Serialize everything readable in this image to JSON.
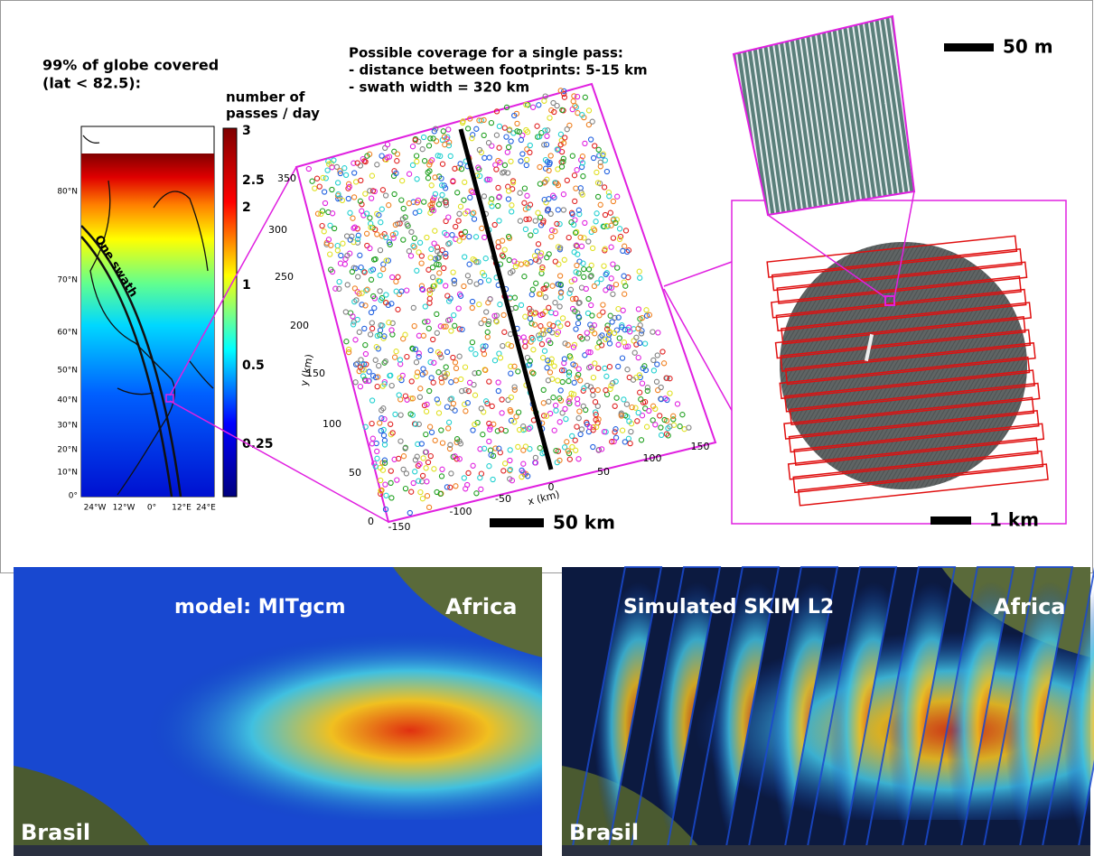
{
  "coverage_map": {
    "title_lines": [
      "99% of globe covered",
      "(lat < 82.5):"
    ],
    "lat_labels": [
      "80°N",
      "70°N",
      "60°N",
      "50°N",
      "40°N",
      "30°N",
      "20°N",
      "10°N",
      "0°"
    ],
    "lon_labels": [
      "24°W",
      "12°W",
      "0°",
      "12°E",
      "24°E"
    ],
    "swath_label": "One swath"
  },
  "colorbar": {
    "title_lines": [
      "number of",
      "passes / day"
    ],
    "tick_labels": [
      "3",
      "2.5",
      "2",
      "1",
      "0.5",
      "0.25"
    ]
  },
  "single_pass": {
    "title_lines": [
      "Possible coverage for a single pass:",
      "- distance between footprints: 5-15 km",
      "- swath width = 320 km"
    ],
    "y_axis_label": "y (km)",
    "x_axis_label": "x (km)",
    "y_ticks": [
      "350",
      "300",
      "250",
      "200",
      "150",
      "100",
      "50",
      "0"
    ],
    "x_ticks": [
      "-150",
      "-100",
      "-50",
      "0",
      "50",
      "100",
      "150"
    ],
    "scale_label": "50 km"
  },
  "zoom": {
    "top_scale_label": "50 m",
    "bottom_scale_label": "1 km"
  },
  "panels": [
    {
      "caption": "model: MITgcm",
      "left_label": "Brasil",
      "right_label": "Africa"
    },
    {
      "caption": "Simulated SKIM L2",
      "left_label": "Brasil",
      "right_label": "Africa"
    }
  ]
}
